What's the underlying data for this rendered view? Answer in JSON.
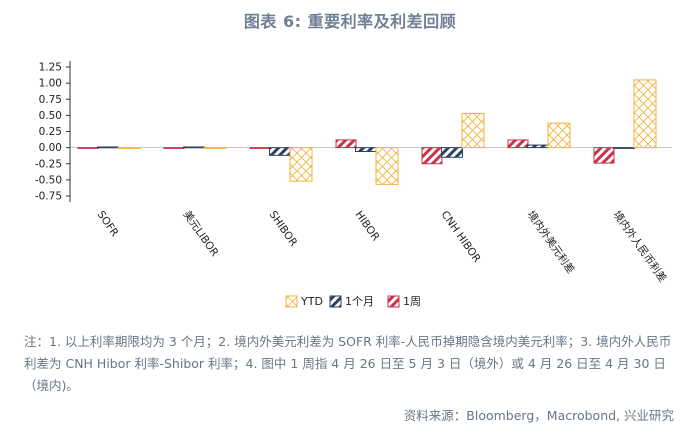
{
  "chart_data": {
    "type": "bar",
    "title": "图表 6: 重要利率及利差回顾",
    "categories": [
      "SOFR",
      "美元LIBOR",
      "SHIBOR",
      "HIBOR",
      "CNH HIBOR",
      "境内外美元利差",
      "境内外人民币利差"
    ],
    "series": [
      {
        "name": "1周",
        "values": [
          0.0,
          0.0,
          0.0,
          0.12,
          -0.25,
          0.12,
          -0.24
        ],
        "color": "#c9334a"
      },
      {
        "name": "1个月",
        "values": [
          0.01,
          0.01,
          -0.12,
          -0.06,
          -0.15,
          0.04,
          -0.01
        ],
        "color": "#2d4160"
      },
      {
        "name": "YTD",
        "values": [
          0.0,
          0.0,
          -0.52,
          -0.57,
          0.53,
          0.38,
          1.05
        ],
        "color": "#f0b43c"
      }
    ],
    "legend_order": [
      "YTD",
      "1个月",
      "1周"
    ],
    "legend_position": "bottom",
    "yticks": [
      "1.25",
      "1.00",
      "0.75",
      "0.50",
      "0.25",
      "0.00",
      "-0.25",
      "-0.50",
      "-0.75"
    ],
    "ylim": [
      -0.75,
      1.25
    ],
    "grid": false
  },
  "note": "注：1. 以上利率期限均为 3 个月；2. 境内外美元利差为 SOFR 利率-人民币掉期隐含境内美元利率；3. 境内外人民币利差为 CNH Hibor 利率-Shibor 利率；4. 图中 1 周指 4 月 26 日至 5 月 3 日（境外）或 4 月 26 日至 4 月 30 日（境内)。",
  "source": "资料来源：Bloomberg，Macrobond, 兴业研究"
}
